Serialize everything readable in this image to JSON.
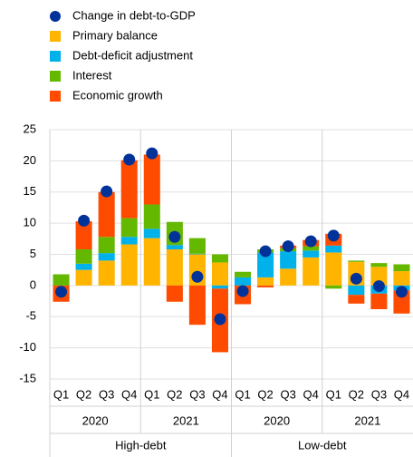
{
  "chart_data": {
    "type": "bar",
    "categories": [
      "Q1",
      "Q2",
      "Q3",
      "Q4",
      "Q1",
      "Q2",
      "Q3",
      "Q4",
      "Q1",
      "Q2",
      "Q3",
      "Q4",
      "Q1",
      "Q2",
      "Q3",
      "Q4"
    ],
    "years": [
      "2020",
      "2021",
      "2020",
      "2021"
    ],
    "regions": [
      "High-debt",
      "Low-debt"
    ],
    "series": [
      {
        "name": "Change in debt-to-GDP",
        "color": "#003299",
        "type": "dot",
        "values": [
          -1.0,
          10.4,
          15.1,
          20.2,
          21.2,
          7.8,
          1.4,
          -5.4,
          -0.9,
          5.5,
          6.3,
          7.1,
          8.0,
          1.1,
          -0.1,
          -1.0
        ]
      },
      {
        "name": "Primary balance",
        "color": "#ffb400",
        "values": [
          0.0,
          2.5,
          4.0,
          6.6,
          7.6,
          5.8,
          5.0,
          3.7,
          0.0,
          1.3,
          2.7,
          4.5,
          5.3,
          3.8,
          3.0,
          2.3
        ]
      },
      {
        "name": "Debt-deficit adjustment",
        "color": "#00b1ea",
        "values": [
          0.0,
          1.0,
          1.2,
          1.2,
          1.5,
          0.7,
          0.1,
          -0.5,
          1.3,
          4.0,
          2.8,
          1.1,
          1.1,
          -1.5,
          -1.3,
          -0.8
        ]
      },
      {
        "name": "Interest",
        "color": "#65b800",
        "values": [
          1.8,
          2.3,
          2.6,
          3.0,
          3.9,
          3.7,
          2.5,
          1.3,
          0.9,
          0.5,
          0.5,
          0.7,
          -0.5,
          0.2,
          0.6,
          1.1
        ]
      },
      {
        "name": "Economic growth",
        "color": "#ff4b00",
        "values": [
          -2.6,
          4.5,
          7.2,
          9.3,
          8.0,
          -2.6,
          -6.3,
          -10.2,
          -3.0,
          -0.3,
          0.4,
          1.0,
          1.9,
          -1.4,
          -2.5,
          -3.7
        ]
      }
    ],
    "ylim": [
      -15,
      25
    ],
    "yticks": [
      -15,
      -10,
      -5,
      0,
      5,
      10,
      15,
      20,
      25
    ],
    "grid": true
  }
}
